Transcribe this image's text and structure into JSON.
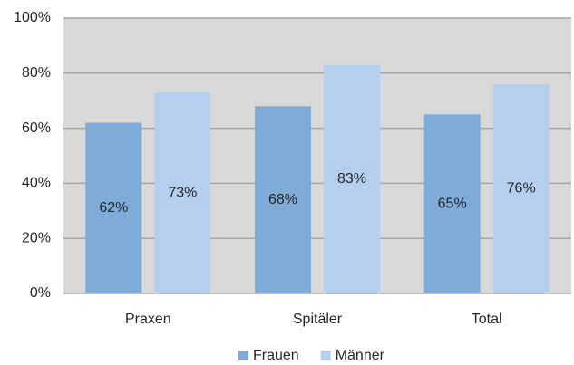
{
  "chart_data": {
    "type": "bar",
    "categories": [
      "Praxen",
      "Spitäler",
      "Total"
    ],
    "series": [
      {
        "name": "Frauen",
        "color": "#7fabd9",
        "values": [
          62,
          68,
          65
        ],
        "value_labels": [
          "62%",
          "68%",
          "65%"
        ]
      },
      {
        "name": "Männer",
        "color": "#b7cfee",
        "values": [
          73,
          83,
          76
        ],
        "value_labels": [
          "73%",
          "83%",
          "76%"
        ]
      }
    ],
    "ylim": [
      0,
      100
    ],
    "yticks": [
      {
        "value": 0,
        "label": "0%"
      },
      {
        "value": 20,
        "label": "20%"
      },
      {
        "value": 40,
        "label": "40%"
      },
      {
        "value": 60,
        "label": "60%"
      },
      {
        "value": 80,
        "label": "80%"
      },
      {
        "value": 100,
        "label": "100%"
      }
    ],
    "grid": true,
    "legend": "bottom"
  }
}
